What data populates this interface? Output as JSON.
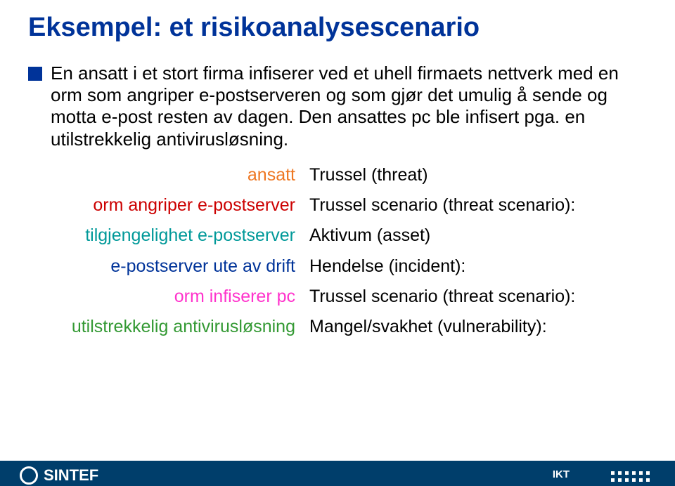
{
  "title": "Eksempel: et risikoanalysescenario",
  "body": "En ansatt i et stort firma infiserer ved et uhell firmaets nettverk med en orm som angriper e-postserveren og som gjør det umulig å sende og motta e-post resten av dagen. Den ansattes pc ble infisert pga. en utilstrekkelig antivirusløsning.",
  "rows": [
    {
      "left": "ansatt",
      "left_color": "c-orange",
      "right": "Trussel (threat)"
    },
    {
      "left": "orm angriper e-postserver",
      "left_color": "c-red",
      "right": "Trussel scenario (threat scenario):"
    },
    {
      "left": "tilgjengelighet e-postserver",
      "left_color": "c-teal",
      "right": "Aktivum (asset)"
    },
    {
      "left": "e-postserver ute av drift",
      "left_color": "c-navy",
      "right": "Hendelse (incident):"
    },
    {
      "left": "orm infiserer pc",
      "left_color": "c-pink",
      "right": "Trussel scenario (threat scenario):"
    },
    {
      "left": "utilstrekkelig antivirusløsning",
      "left_color": "c-green",
      "right": "Mangel/svakhet (vulnerability):"
    }
  ],
  "footer": {
    "brand": "SINTEF",
    "ikt": "IKT"
  },
  "colors": {
    "title": "#003399",
    "footer_bg": "#003e6b"
  }
}
